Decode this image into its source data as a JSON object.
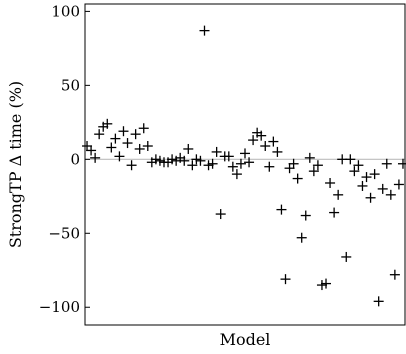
{
  "chart_data": {
    "type": "scatter",
    "title": "",
    "xlabel": "Model",
    "ylabel": "StrongTP Δ time (%)",
    "ylim": [
      -112,
      105
    ],
    "yticks": [
      100,
      50,
      0,
      -50,
      -100
    ],
    "ytick_labels": [
      "100",
      "50",
      "0",
      "−50",
      "−100"
    ],
    "xlim": [
      0.5,
      79.5
    ],
    "grid": false,
    "reference_line_y": 0,
    "marker": "plus",
    "points": [
      {
        "x": 1,
        "y": 9
      },
      {
        "x": 2,
        "y": 6
      },
      {
        "x": 3,
        "y": 1
      },
      {
        "x": 4,
        "y": 17
      },
      {
        "x": 5,
        "y": 22
      },
      {
        "x": 6,
        "y": 24
      },
      {
        "x": 7,
        "y": 8
      },
      {
        "x": 8,
        "y": 14
      },
      {
        "x": 9,
        "y": 2
      },
      {
        "x": 10,
        "y": 19
      },
      {
        "x": 11,
        "y": 11
      },
      {
        "x": 12,
        "y": -4
      },
      {
        "x": 13,
        "y": 17
      },
      {
        "x": 14,
        "y": 7
      },
      {
        "x": 15,
        "y": 21
      },
      {
        "x": 16,
        "y": 9
      },
      {
        "x": 17,
        "y": -2
      },
      {
        "x": 18,
        "y": 0
      },
      {
        "x": 19,
        "y": -1
      },
      {
        "x": 20,
        "y": -2
      },
      {
        "x": 21,
        "y": -2
      },
      {
        "x": 22,
        "y": 0
      },
      {
        "x": 23,
        "y": -1
      },
      {
        "x": 24,
        "y": 1
      },
      {
        "x": 25,
        "y": -1
      },
      {
        "x": 26,
        "y": 7
      },
      {
        "x": 27,
        "y": -4
      },
      {
        "x": 28,
        "y": 0
      },
      {
        "x": 29,
        "y": -1
      },
      {
        "x": 30,
        "y": 87
      },
      {
        "x": 31,
        "y": -4
      },
      {
        "x": 32,
        "y": -3
      },
      {
        "x": 33,
        "y": 5
      },
      {
        "x": 34,
        "y": -37
      },
      {
        "x": 35,
        "y": 2
      },
      {
        "x": 36,
        "y": 2
      },
      {
        "x": 37,
        "y": -5
      },
      {
        "x": 38,
        "y": -10
      },
      {
        "x": 39,
        "y": -3
      },
      {
        "x": 40,
        "y": 4
      },
      {
        "x": 41,
        "y": -2
      },
      {
        "x": 42,
        "y": 13
      },
      {
        "x": 43,
        "y": 18
      },
      {
        "x": 44,
        "y": 16
      },
      {
        "x": 45,
        "y": 9
      },
      {
        "x": 46,
        "y": -5
      },
      {
        "x": 47,
        "y": 12
      },
      {
        "x": 48,
        "y": 5
      },
      {
        "x": 49,
        "y": -34
      },
      {
        "x": 50,
        "y": -81
      },
      {
        "x": 51,
        "y": -6
      },
      {
        "x": 52,
        "y": -3
      },
      {
        "x": 53,
        "y": -13
      },
      {
        "x": 54,
        "y": -53
      },
      {
        "x": 55,
        "y": -38
      },
      {
        "x": 56,
        "y": 1
      },
      {
        "x": 57,
        "y": -8
      },
      {
        "x": 58,
        "y": -4
      },
      {
        "x": 59,
        "y": -85
      },
      {
        "x": 60,
        "y": -84
      },
      {
        "x": 61,
        "y": -16
      },
      {
        "x": 62,
        "y": -36
      },
      {
        "x": 63,
        "y": -24
      },
      {
        "x": 64,
        "y": 0
      },
      {
        "x": 65,
        "y": -66
      },
      {
        "x": 66,
        "y": 0
      },
      {
        "x": 67,
        "y": -8
      },
      {
        "x": 68,
        "y": -4
      },
      {
        "x": 69,
        "y": -18
      },
      {
        "x": 70,
        "y": -12
      },
      {
        "x": 71,
        "y": -26
      },
      {
        "x": 72,
        "y": -10
      },
      {
        "x": 73,
        "y": -96
      },
      {
        "x": 74,
        "y": -20
      },
      {
        "x": 75,
        "y": -3
      },
      {
        "x": 76,
        "y": -24
      },
      {
        "x": 77,
        "y": -78
      },
      {
        "x": 78,
        "y": -17
      },
      {
        "x": 79,
        "y": -3
      }
    ]
  }
}
